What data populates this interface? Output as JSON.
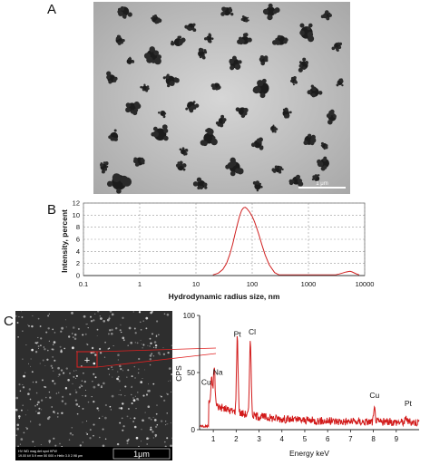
{
  "panels": {
    "a": {
      "letter": "A",
      "scale_bar_label": "1 μm"
    },
    "b": {
      "letter": "B"
    },
    "c": {
      "letter": "C"
    }
  },
  "tem_image": {
    "particles": [
      [
        0.12,
        0.05,
        7
      ],
      [
        0.24,
        0.09,
        5
      ],
      [
        0.52,
        0.05,
        6
      ],
      [
        0.69,
        0.05,
        7
      ],
      [
        0.91,
        0.07,
        5
      ],
      [
        0.83,
        0.16,
        9
      ],
      [
        0.1,
        0.2,
        5
      ],
      [
        0.38,
        0.13,
        5
      ],
      [
        0.59,
        0.2,
        6
      ],
      [
        0.73,
        0.2,
        7
      ],
      [
        0.95,
        0.23,
        5
      ],
      [
        0.23,
        0.28,
        9
      ],
      [
        0.42,
        0.27,
        5
      ],
      [
        0.55,
        0.32,
        7
      ],
      [
        0.82,
        0.33,
        6
      ],
      [
        0.07,
        0.4,
        6
      ],
      [
        0.3,
        0.41,
        7
      ],
      [
        0.48,
        0.44,
        5
      ],
      [
        0.66,
        0.45,
        9
      ],
      [
        0.86,
        0.47,
        7
      ],
      [
        0.15,
        0.55,
        7
      ],
      [
        0.38,
        0.54,
        6
      ],
      [
        0.58,
        0.57,
        6
      ],
      [
        0.75,
        0.58,
        5
      ],
      [
        0.93,
        0.6,
        6
      ],
      [
        0.08,
        0.7,
        6
      ],
      [
        0.26,
        0.69,
        9
      ],
      [
        0.45,
        0.71,
        8
      ],
      [
        0.64,
        0.74,
        6
      ],
      [
        0.84,
        0.72,
        7
      ],
      [
        0.18,
        0.83,
        6
      ],
      [
        0.34,
        0.86,
        5
      ],
      [
        0.55,
        0.86,
        8
      ],
      [
        0.72,
        0.87,
        5
      ],
      [
        0.9,
        0.84,
        7
      ],
      [
        0.1,
        0.94,
        11
      ],
      [
        0.42,
        0.95,
        6
      ],
      [
        0.64,
        0.96,
        5
      ],
      [
        0.79,
        0.93,
        6
      ],
      [
        0.33,
        0.21,
        6
      ],
      [
        0.66,
        0.3,
        5
      ],
      [
        0.5,
        0.62,
        5
      ],
      [
        0.2,
        0.45,
        4
      ],
      [
        0.78,
        0.41,
        4
      ],
      [
        0.04,
        0.86,
        5
      ],
      [
        0.96,
        0.42,
        4
      ],
      [
        0.27,
        0.58,
        4
      ],
      [
        0.87,
        0.92,
        4
      ],
      [
        0.59,
        0.09,
        4
      ],
      [
        0.45,
        0.19,
        4
      ],
      [
        0.14,
        0.31,
        4
      ],
      [
        0.35,
        0.78,
        4
      ],
      [
        0.7,
        0.66,
        4
      ],
      [
        0.9,
        0.75,
        4
      ]
    ]
  },
  "sem_image": {
    "marker_symbol": "+",
    "scale_bar_label": "1μm",
    "info_bar": "HV   WD   mag   det   spot   HFW\n19.00 kV  5.9 mm  50 000 x  Helix  3.0  2.98 μm"
  },
  "chart_data": [
    {
      "type": "line",
      "title": "",
      "xlabel": "Hydrodynamic radius size, nm",
      "ylabel": "Intensity, percent",
      "xscale": "log",
      "xlim": [
        0.1,
        10000
      ],
      "ylim": [
        0,
        12
      ],
      "grid": true,
      "xticks": [
        "0.1",
        "1",
        "10",
        "100",
        "1000",
        "10000"
      ],
      "yticks": [
        "0",
        "2",
        "4",
        "6",
        "8",
        "10",
        "12"
      ],
      "series": [
        {
          "color": "#d02020",
          "x": [
            20,
            25,
            30,
            35,
            40,
            45,
            50,
            55,
            60,
            65,
            70,
            75,
            80,
            90,
            100,
            110,
            120,
            130,
            150,
            170,
            200,
            250,
            300,
            3000,
            3500,
            4000,
            4500,
            5000,
            5500,
            6000,
            7000,
            8000
          ],
          "y": [
            0.1,
            0.4,
            1.0,
            2.0,
            3.5,
            5.2,
            7.0,
            8.6,
            9.9,
            10.8,
            11.2,
            11.3,
            11.1,
            10.5,
            9.8,
            8.9,
            7.9,
            6.9,
            5.0,
            3.4,
            1.8,
            0.5,
            0.1,
            0.1,
            0.25,
            0.4,
            0.55,
            0.65,
            0.7,
            0.6,
            0.3,
            0.1
          ]
        }
      ]
    },
    {
      "type": "line",
      "title": "",
      "xlabel": "Energy keV",
      "ylabel": "CPS",
      "xlim": [
        0.4,
        10
      ],
      "ylim": [
        0,
        100
      ],
      "xticks": [
        "1",
        "2",
        "3",
        "4",
        "5",
        "6",
        "7",
        "8",
        "9"
      ],
      "yticks": [
        "0",
        "50",
        "100"
      ],
      "peaks": [
        {
          "label": "Cu",
          "x": 0.93,
          "y": 33
        },
        {
          "label": "Na",
          "x": 1.04,
          "y": 45
        },
        {
          "label": "Pt",
          "x": 2.05,
          "y": 78
        },
        {
          "label": "Cl",
          "x": 2.62,
          "y": 80
        },
        {
          "label": "Cu",
          "x": 8.05,
          "y": 23
        },
        {
          "label": "Pt",
          "x": 9.44,
          "y": 16
        }
      ],
      "series": [
        {
          "color": "#d21a1a"
        }
      ]
    }
  ]
}
